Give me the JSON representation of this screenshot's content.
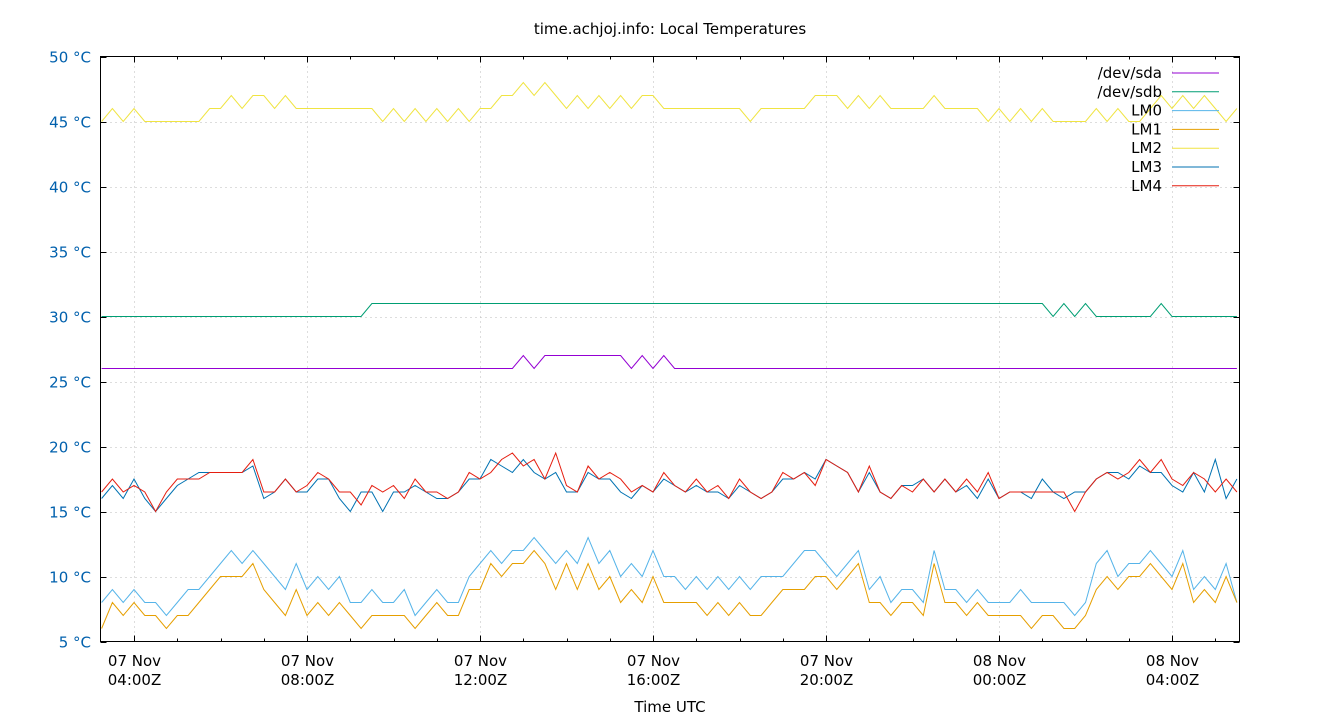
{
  "chart_data": {
    "type": "line",
    "title": "time.achjoj.info: Local Temperatures",
    "xlabel": "Time UTC",
    "ylabel": "",
    "ylim": [
      5,
      50
    ],
    "y_ticks": [
      "5 °C",
      "10 °C",
      "15 °C",
      "20 °C",
      "25 °C",
      "30 °C",
      "35 °C",
      "40 °C",
      "45 °C",
      "50 °C"
    ],
    "x_ticks": [
      {
        "date": "07 Nov",
        "time": "04:00Z"
      },
      {
        "date": "07 Nov",
        "time": "08:00Z"
      },
      {
        "date": "07 Nov",
        "time": "12:00Z"
      },
      {
        "date": "07 Nov",
        "time": "16:00Z"
      },
      {
        "date": "07 Nov",
        "time": "20:00Z"
      },
      {
        "date": "08 Nov",
        "time": "00:00Z"
      },
      {
        "date": "08 Nov",
        "time": "04:00Z"
      }
    ],
    "x_range": [
      "07 Nov 03:13Z",
      "08 Nov 05:33Z"
    ],
    "x_start": "07 Nov 03:15Z",
    "sample_interval_minutes": 15,
    "grid": true,
    "legend": "top-right",
    "series": [
      {
        "name": "/dev/sda",
        "color": "#9400d3",
        "values": [
          26,
          26,
          26,
          26,
          26,
          26,
          26,
          26,
          26,
          26,
          26,
          26,
          26,
          26,
          26,
          26,
          26,
          26,
          26,
          26,
          26,
          26,
          26,
          26,
          26,
          26,
          26,
          26,
          26,
          26,
          26,
          26,
          26,
          26,
          26,
          26,
          26,
          26,
          26,
          27,
          26,
          27,
          27,
          27,
          27,
          27,
          27,
          27,
          27,
          26,
          27,
          26,
          27,
          26,
          26,
          26,
          26,
          26,
          26,
          26,
          26,
          26,
          26,
          26,
          26,
          26,
          26,
          26,
          26,
          26,
          26,
          26,
          26,
          26,
          26,
          26,
          26,
          26,
          26,
          26,
          26,
          26,
          26,
          26,
          26,
          26,
          26,
          26,
          26,
          26,
          26,
          26,
          26,
          26,
          26,
          26,
          26,
          26,
          26,
          26,
          26,
          26,
          26,
          26,
          26,
          26
        ]
      },
      {
        "name": "/dev/sdb",
        "color": "#009e73",
        "values": [
          30,
          30,
          30,
          30,
          30,
          30,
          30,
          30,
          30,
          30,
          30,
          30,
          30,
          30,
          30,
          30,
          30,
          30,
          30,
          30,
          30,
          30,
          30,
          30,
          30,
          31,
          31,
          31,
          31,
          31,
          31,
          31,
          31,
          31,
          31,
          31,
          31,
          31,
          31,
          31,
          31,
          31,
          31,
          31,
          31,
          31,
          31,
          31,
          31,
          31,
          31,
          31,
          31,
          31,
          31,
          31,
          31,
          31,
          31,
          31,
          31,
          31,
          31,
          31,
          31,
          31,
          31,
          31,
          31,
          31,
          31,
          31,
          31,
          31,
          31,
          31,
          31,
          31,
          31,
          31,
          31,
          31,
          31,
          31,
          31,
          31,
          31,
          31,
          30,
          31,
          30,
          31,
          30,
          30,
          30,
          30,
          30,
          30,
          31,
          30,
          30,
          30,
          30,
          30,
          30,
          30
        ]
      },
      {
        "name": "LM0",
        "color": "#56b4e9",
        "values": [
          8,
          9,
          8,
          9,
          8,
          8,
          7,
          8,
          9,
          9,
          10,
          11,
          12,
          11,
          12,
          11,
          10,
          9,
          11,
          9,
          10,
          9,
          10,
          8,
          8,
          9,
          8,
          8,
          9,
          7,
          8,
          9,
          8,
          8,
          10,
          11,
          12,
          11,
          12,
          12,
          13,
          12,
          11,
          12,
          11,
          13,
          11,
          12,
          10,
          11,
          10,
          12,
          10,
          10,
          9,
          10,
          9,
          10,
          9,
          10,
          9,
          10,
          10,
          10,
          11,
          12,
          12,
          11,
          10,
          11,
          12,
          9,
          10,
          8,
          9,
          9,
          8,
          12,
          9,
          9,
          8,
          9,
          8,
          8,
          8,
          9,
          8,
          8,
          8,
          8,
          7,
          8,
          11,
          12,
          10,
          11,
          11,
          12,
          11,
          10,
          12,
          9,
          10,
          9,
          11,
          8
        ]
      },
      {
        "name": "LM1",
        "color": "#e69f00",
        "values": [
          6,
          8,
          7,
          8,
          7,
          7,
          6,
          7,
          7,
          8,
          9,
          10,
          10,
          10,
          11,
          9,
          8,
          7,
          9,
          7,
          8,
          7,
          8,
          7,
          6,
          7,
          7,
          7,
          7,
          6,
          7,
          8,
          7,
          7,
          9,
          9,
          11,
          10,
          11,
          11,
          12,
          11,
          9,
          11,
          9,
          11,
          9,
          10,
          8,
          9,
          8,
          10,
          8,
          8,
          8,
          8,
          7,
          8,
          7,
          8,
          7,
          7,
          8,
          9,
          9,
          9,
          10,
          10,
          9,
          10,
          11,
          8,
          8,
          7,
          8,
          8,
          7,
          11,
          8,
          8,
          7,
          8,
          7,
          7,
          7,
          7,
          6,
          7,
          7,
          6,
          6,
          7,
          9,
          10,
          9,
          10,
          10,
          11,
          10,
          9,
          11,
          8,
          9,
          8,
          10,
          8
        ]
      },
      {
        "name": "LM2",
        "color": "#f0e442",
        "values": [
          45,
          46,
          45,
          46,
          45,
          45,
          45,
          45,
          45,
          45,
          46,
          46,
          47,
          46,
          47,
          47,
          46,
          47,
          46,
          46,
          46,
          46,
          46,
          46,
          46,
          46,
          45,
          46,
          45,
          46,
          45,
          46,
          45,
          46,
          45,
          46,
          46,
          47,
          47,
          48,
          47,
          48,
          47,
          46,
          47,
          46,
          47,
          46,
          47,
          46,
          47,
          47,
          46,
          46,
          46,
          46,
          46,
          46,
          46,
          46,
          45,
          46,
          46,
          46,
          46,
          46,
          47,
          47,
          47,
          46,
          47,
          46,
          47,
          46,
          46,
          46,
          46,
          47,
          46,
          46,
          46,
          46,
          45,
          46,
          45,
          46,
          45,
          46,
          45,
          45,
          45,
          45,
          46,
          45,
          46,
          45,
          45,
          46,
          47,
          46,
          47,
          46,
          47,
          46,
          45,
          46
        ]
      },
      {
        "name": "LM3",
        "color": "#0072b2",
        "values": [
          16,
          17,
          16,
          17.5,
          16,
          15,
          16,
          17,
          17.5,
          18,
          18,
          18,
          18,
          18,
          18.5,
          16,
          16.5,
          17.5,
          16.5,
          16.5,
          17.5,
          17.5,
          16,
          15,
          16.5,
          16.5,
          15,
          16.5,
          16.5,
          17,
          16.5,
          16,
          16,
          16.5,
          17.5,
          17.5,
          19,
          18.5,
          18,
          19,
          18,
          17.5,
          18,
          16.5,
          16.5,
          18,
          17.5,
          17.5,
          16.5,
          16,
          17,
          16.5,
          17.5,
          17,
          16.5,
          17,
          16.5,
          16.5,
          16,
          17,
          16.5,
          16,
          16.5,
          17.5,
          17.5,
          18,
          17.5,
          19,
          18.5,
          18,
          16.5,
          18,
          16.5,
          16,
          17,
          17,
          17.5,
          16.5,
          17.5,
          16.5,
          17,
          16,
          17.5,
          16,
          16.5,
          16.5,
          16,
          17.5,
          16.5,
          16,
          16.5,
          16.5,
          17.5,
          18,
          18,
          17.5,
          18.5,
          18,
          18,
          17,
          16.5,
          18,
          16.5,
          19,
          16,
          17.5
        ]
      },
      {
        "name": "LM4",
        "color": "#e51e10",
        "values": [
          16.5,
          17.5,
          16.5,
          17,
          16.5,
          15,
          16.5,
          17.5,
          17.5,
          17.5,
          18,
          18,
          18,
          18,
          19,
          16.5,
          16.5,
          17.5,
          16.5,
          17,
          18,
          17.5,
          16.5,
          16.5,
          15.5,
          17,
          16.5,
          17,
          16,
          17.5,
          16.5,
          16.5,
          16,
          16.5,
          18,
          17.5,
          18,
          19,
          19.5,
          18.5,
          19,
          17.5,
          19.5,
          17,
          16.5,
          18.5,
          17.5,
          18,
          17.5,
          16.5,
          17,
          16.5,
          18,
          17,
          16.5,
          17.5,
          16.5,
          17,
          16,
          17.5,
          16.5,
          16,
          16.5,
          18,
          17.5,
          18,
          17,
          19,
          18.5,
          18,
          16.5,
          18.5,
          16.5,
          16,
          17,
          16.5,
          17.5,
          16.5,
          17.5,
          16.5,
          17.5,
          16.5,
          18,
          16,
          16.5,
          16.5,
          16.5,
          16.5,
          16.5,
          16.5,
          15,
          16.5,
          17.5,
          18,
          17.5,
          18,
          19,
          18,
          19,
          17.5,
          17,
          18,
          17.5,
          16.5,
          17.5,
          16.5
        ]
      }
    ]
  }
}
